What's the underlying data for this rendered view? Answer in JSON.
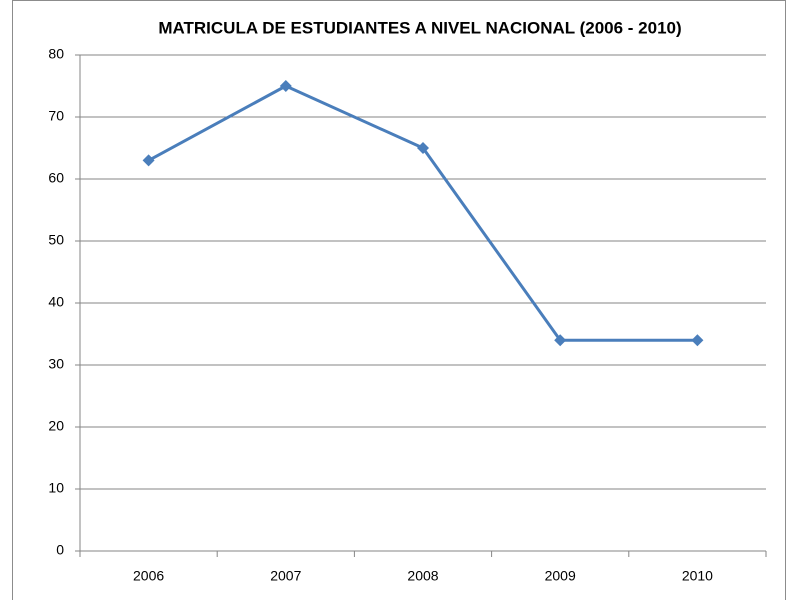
{
  "chart_data": {
    "type": "line",
    "title": "MATRICULA DE ESTUDIANTES A NIVEL NACIONAL (2006 - 2010)",
    "categories": [
      "2006",
      "2007",
      "2008",
      "2009",
      "2010"
    ],
    "series": [
      {
        "color": "#4a7ebb",
        "values": [
          63,
          75,
          65,
          34,
          34
        ]
      }
    ],
    "ylim": [
      0,
      80
    ],
    "yticks": [
      0,
      10,
      20,
      30,
      40,
      50,
      60,
      70,
      80
    ],
    "grid": true
  }
}
